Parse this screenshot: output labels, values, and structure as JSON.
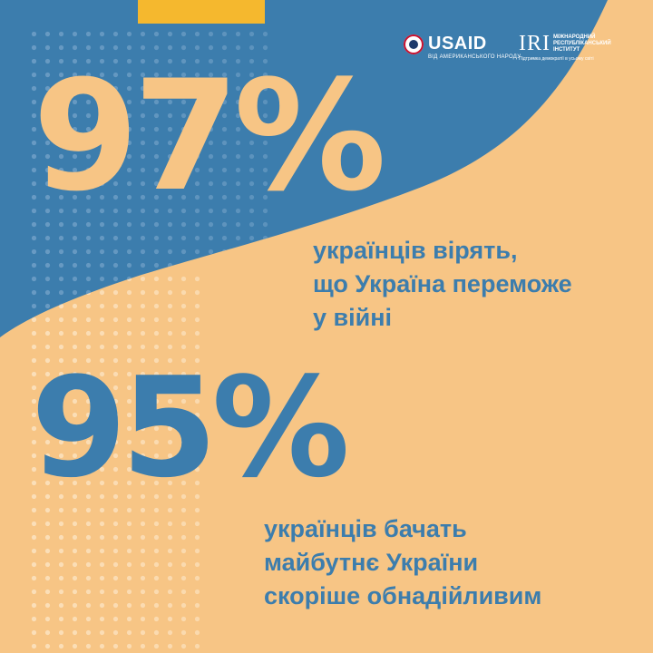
{
  "colors": {
    "blue": "#3c7dad",
    "peach": "#f7c585",
    "yellow": "#f5b82e",
    "white": "#ffffff"
  },
  "logos": {
    "usaid": {
      "name": "USAID",
      "tagline": "ВІД АМЕРИКАНСЬКОГО НАРОДУ"
    },
    "iri": {
      "mark": "IRI",
      "name_lines": [
        "МІЖНАРОДНИЙ",
        "РЕСПУБЛІКАНСЬКИЙ",
        "ІНСТИТУТ"
      ],
      "tagline": "Підтримка демократії в усьому світі"
    }
  },
  "stats": [
    {
      "value": "97%",
      "caption_lines": [
        "українців вірять,",
        "що Україна переможе",
        "у війні"
      ]
    },
    {
      "value": "95%",
      "caption_lines": [
        "українців бачать",
        "майбутнє України",
        "скоріше обнадійливим"
      ]
    }
  ]
}
